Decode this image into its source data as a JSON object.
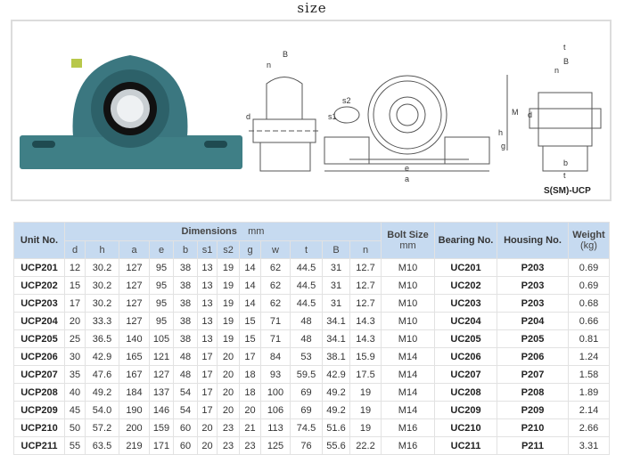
{
  "title": "size",
  "figure": {
    "caption": "S(SM)-UCP",
    "dimension_labels": [
      "B",
      "n",
      "d",
      "s1",
      "s2",
      "e",
      "a",
      "M",
      "h",
      "g",
      "t",
      "b"
    ]
  },
  "table": {
    "unit_header": "Unit No.",
    "dimensions_header": "Dimensions",
    "dimensions_unit": "mm",
    "dim_columns": [
      "d",
      "h",
      "a",
      "e",
      "b",
      "s1",
      "s2",
      "g",
      "w",
      "t",
      "B",
      "n"
    ],
    "bolt_header": "Bolt Size",
    "bolt_unit": "mm",
    "bearing_header": "Bearing No.",
    "housing_header": "Housing No.",
    "weight_header": "Weight",
    "weight_unit": "(kg)",
    "rows": [
      {
        "unit": "UCP201",
        "dims": [
          "12",
          "30.2",
          "127",
          "95",
          "38",
          "13",
          "19",
          "14",
          "62",
          "44.5",
          "31",
          "12.7"
        ],
        "bolt": "M10",
        "bearing": "UC201",
        "housing": "P203",
        "weight": "0.69"
      },
      {
        "unit": "UCP202",
        "dims": [
          "15",
          "30.2",
          "127",
          "95",
          "38",
          "13",
          "19",
          "14",
          "62",
          "44.5",
          "31",
          "12.7"
        ],
        "bolt": "M10",
        "bearing": "UC202",
        "housing": "P203",
        "weight": "0.69"
      },
      {
        "unit": "UCP203",
        "dims": [
          "17",
          "30.2",
          "127",
          "95",
          "38",
          "13",
          "19",
          "14",
          "62",
          "44.5",
          "31",
          "12.7"
        ],
        "bolt": "M10",
        "bearing": "UC203",
        "housing": "P203",
        "weight": "0.68"
      },
      {
        "unit": "UCP204",
        "dims": [
          "20",
          "33.3",
          "127",
          "95",
          "38",
          "13",
          "19",
          "15",
          "71",
          "48",
          "34.1",
          "14.3"
        ],
        "bolt": "M10",
        "bearing": "UC204",
        "housing": "P204",
        "weight": "0.66"
      },
      {
        "unit": "UCP205",
        "dims": [
          "25",
          "36.5",
          "140",
          "105",
          "38",
          "13",
          "19",
          "15",
          "71",
          "48",
          "34.1",
          "14.3"
        ],
        "bolt": "M10",
        "bearing": "UC205",
        "housing": "P205",
        "weight": "0.81"
      },
      {
        "unit": "UCP206",
        "dims": [
          "30",
          "42.9",
          "165",
          "121",
          "48",
          "17",
          "20",
          "17",
          "84",
          "53",
          "38.1",
          "15.9"
        ],
        "bolt": "M14",
        "bearing": "UC206",
        "housing": "P206",
        "weight": "1.24"
      },
      {
        "unit": "UCP207",
        "dims": [
          "35",
          "47.6",
          "167",
          "127",
          "48",
          "17",
          "20",
          "18",
          "93",
          "59.5",
          "42.9",
          "17.5"
        ],
        "bolt": "M14",
        "bearing": "UC207",
        "housing": "P207",
        "weight": "1.58"
      },
      {
        "unit": "UCP208",
        "dims": [
          "40",
          "49.2",
          "184",
          "137",
          "54",
          "17",
          "20",
          "18",
          "100",
          "69",
          "49.2",
          "19"
        ],
        "bolt": "M14",
        "bearing": "UC208",
        "housing": "P208",
        "weight": "1.89"
      },
      {
        "unit": "UCP209",
        "dims": [
          "45",
          "54.0",
          "190",
          "146",
          "54",
          "17",
          "20",
          "20",
          "106",
          "69",
          "49.2",
          "19"
        ],
        "bolt": "M14",
        "bearing": "UC209",
        "housing": "P209",
        "weight": "2.14"
      },
      {
        "unit": "UCP210",
        "dims": [
          "50",
          "57.2",
          "200",
          "159",
          "60",
          "20",
          "23",
          "21",
          "113",
          "74.5",
          "51.6",
          "19"
        ],
        "bolt": "M16",
        "bearing": "UC210",
        "housing": "P210",
        "weight": "2.66"
      },
      {
        "unit": "UCP211",
        "dims": [
          "55",
          "63.5",
          "219",
          "171",
          "60",
          "20",
          "23",
          "23",
          "125",
          "76",
          "55.6",
          "22.2"
        ],
        "bolt": "M16",
        "bearing": "UC211",
        "housing": "P211",
        "weight": "3.31"
      }
    ]
  }
}
